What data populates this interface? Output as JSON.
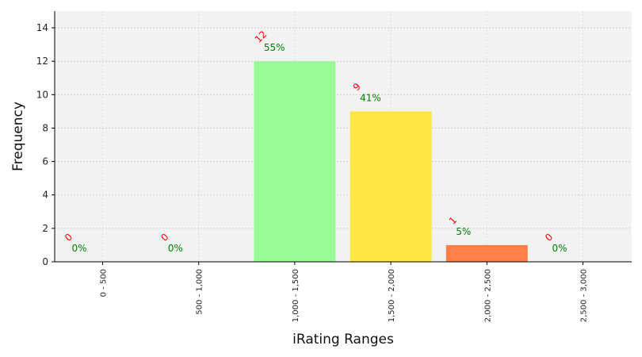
{
  "chart_data": {
    "type": "bar",
    "categories": [
      "0 - 500",
      "500 - 1,000",
      "1,000 - 1,500",
      "1,500 - 2,000",
      "2,000 - 2,500",
      "2,500 - 3,000"
    ],
    "values": [
      0,
      0,
      12,
      9,
      1,
      0
    ],
    "count_labels": [
      "0",
      "0",
      "12",
      "9",
      "1",
      "0"
    ],
    "percent_labels": [
      "0%",
      "0%",
      "55%",
      "41%",
      "5%",
      "0%"
    ],
    "bar_colors": [
      "#d62728",
      "#ff7f0e",
      "#98fb98",
      "#ffe640",
      "#ff7f4b",
      "#9467bd"
    ],
    "count_label_color": "#ff0000",
    "percent_label_color": "#008000",
    "title": "",
    "xlabel": "iRating Ranges",
    "ylabel": "Frequency",
    "ylim": [
      0,
      15
    ],
    "yticks": [
      0,
      2,
      4,
      6,
      8,
      10,
      12,
      14
    ],
    "grid": true,
    "legend": "none",
    "plot_background": "#f2f2f2"
  }
}
